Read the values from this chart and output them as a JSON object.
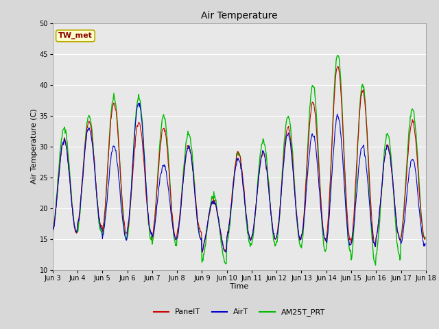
{
  "title": "Air Temperature",
  "xlabel": "Time",
  "ylabel": "Air Temperature (C)",
  "ylim": [
    10,
    50
  ],
  "xtick_labels": [
    "Jun 3",
    "Jun 4",
    "Jun 5",
    "Jun 6",
    "Jun 7",
    "Jun 8",
    "Jun 9",
    "Jun 10",
    "Jun 11",
    "Jun 12",
    "Jun 13",
    "Jun 14",
    "Jun 15",
    "Jun 16",
    "Jun 17",
    "Jun 18"
  ],
  "annotation_text": "TW_met",
  "annotation_bg": "#ffffcc",
  "annotation_edge": "#bbaa00",
  "annotation_text_color": "#880000",
  "line_colors": {
    "PanelT": "#cc0000",
    "AirT": "#0000cc",
    "AM25T_PRT": "#00bb00"
  },
  "line_widths": {
    "PanelT": 0.8,
    "AirT": 0.8,
    "AM25T_PRT": 1.0
  },
  "bg_color": "#e8e8e8",
  "grid_color": "#ffffff",
  "title_fontsize": 10,
  "axis_label_fontsize": 8,
  "tick_fontsize": 7,
  "legend_fontsize": 8
}
